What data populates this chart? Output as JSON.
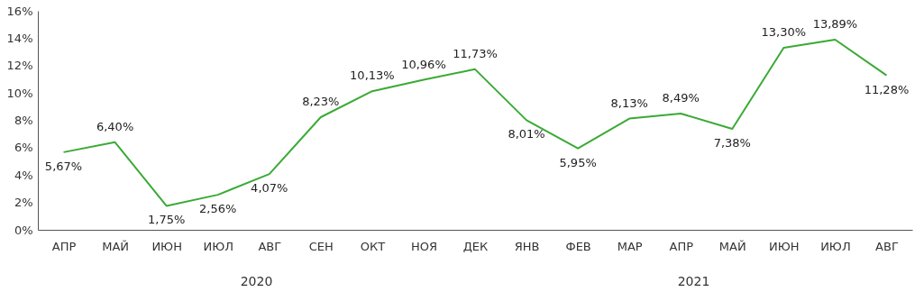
{
  "chart_data": {
    "type": "line",
    "categories": [
      "АПР",
      "МАЙ",
      "ИЮН",
      "ИЮЛ",
      "АВГ",
      "СЕН",
      "ОКТ",
      "НОЯ",
      "ДЕК",
      "ЯНВ",
      "ФЕВ",
      "МАР",
      "АПР",
      "МАЙ",
      "ИЮН",
      "ИЮЛ",
      "АВГ"
    ],
    "series": [
      {
        "color": "#3aaa35",
        "values": [
          5.67,
          6.4,
          1.75,
          2.56,
          4.07,
          8.23,
          10.13,
          10.96,
          11.73,
          8.01,
          5.95,
          8.13,
          8.49,
          7.38,
          13.3,
          13.89,
          11.28
        ],
        "value_labels": [
          "5,67%",
          "6,40%",
          "1,75%",
          "2,56%",
          "4,07%",
          "8,23%",
          "10,13%",
          "10,96%",
          "11,73%",
          "8,01%",
          "5,95%",
          "8,13%",
          "8,49%",
          "7,38%",
          "13,30%",
          "13,89%",
          "11,28%"
        ]
      }
    ],
    "ylim": [
      0,
      16
    ],
    "yticks": [
      {
        "value": 0,
        "label": "0%"
      },
      {
        "value": 2,
        "label": "2%"
      },
      {
        "value": 4,
        "label": "4%"
      },
      {
        "value": 6,
        "label": "6%"
      },
      {
        "value": 8,
        "label": "8%"
      },
      {
        "value": 10,
        "label": "10%"
      },
      {
        "value": 12,
        "label": "12%"
      },
      {
        "value": 14,
        "label": "14%"
      },
      {
        "value": 16,
        "label": "16%"
      }
    ],
    "annotations": [
      "2020",
      "2021"
    ],
    "marker": "none",
    "line_style": "solid"
  }
}
